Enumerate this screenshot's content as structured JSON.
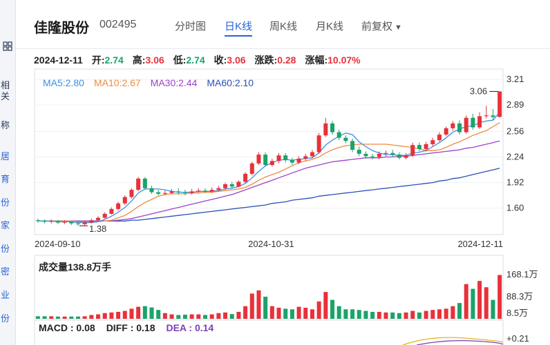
{
  "left_strip": {
    "icon": "grid-icon",
    "chars": [
      "相关",
      "称",
      "居",
      "育",
      "份",
      "家",
      "份",
      "密",
      "业",
      "份"
    ]
  },
  "header": {
    "name": "佳隆股份",
    "code": "002495",
    "tabs": [
      {
        "label": "分时图",
        "active": false
      },
      {
        "label": "日K线",
        "active": true
      },
      {
        "label": "周K线",
        "active": false
      },
      {
        "label": "月K线",
        "active": false
      },
      {
        "label": "前复权",
        "active": false
      }
    ]
  },
  "quote": {
    "date": "2024-12-11",
    "open_label": "开:",
    "open": "2.74",
    "high_label": "高:",
    "high": "3.06",
    "low_label": "低:",
    "low": "2.74",
    "close_label": "收:",
    "close": "3.06",
    "change_label": "涨跌:",
    "change": "0.28",
    "pct_label": "涨幅:",
    "pct": "10.07%"
  },
  "ma_legend": [
    {
      "label": "MA5:2.80",
      "color": "#3a8ee6"
    },
    {
      "label": "MA10:2.67",
      "color": "#f08a3c"
    },
    {
      "label": "MA30:2.44",
      "color": "#9c3fc9"
    },
    {
      "label": "MA60:2.10",
      "color": "#2a4fb5"
    }
  ],
  "volume": {
    "title": "成交量138.8万手"
  },
  "macd": {
    "macd": "MACD : 0.08",
    "diff": "DIFF : 0.18",
    "dea": "DEA : 0.14"
  },
  "chart_data": [
    {
      "type": "candlestick",
      "y_ticks": [
        "3.21",
        "2.89",
        "2.56",
        "2.24",
        "1.92",
        "1.60"
      ],
      "ylim": [
        1.27,
        3.34
      ],
      "x_tick_labels": [
        "2024-09-10",
        "2024-10-31",
        "2024-12-11"
      ],
      "annotations": {
        "max": "3.06",
        "min": "1.38"
      },
      "colors": {
        "up": "#e8313a",
        "down": "#1aa36a"
      },
      "candles": [
        [
          1.45,
          1.44,
          1.47,
          1.42
        ],
        [
          1.44,
          1.43,
          1.46,
          1.41
        ],
        [
          1.43,
          1.44,
          1.46,
          1.41
        ],
        [
          1.44,
          1.42,
          1.45,
          1.4
        ],
        [
          1.42,
          1.43,
          1.45,
          1.4
        ],
        [
          1.43,
          1.41,
          1.44,
          1.39
        ],
        [
          1.41,
          1.4,
          1.43,
          1.38
        ],
        [
          1.4,
          1.42,
          1.44,
          1.38
        ],
        [
          1.42,
          1.45,
          1.47,
          1.41
        ],
        [
          1.45,
          1.48,
          1.5,
          1.44
        ],
        [
          1.48,
          1.53,
          1.55,
          1.47
        ],
        [
          1.53,
          1.59,
          1.61,
          1.52
        ],
        [
          1.59,
          1.66,
          1.68,
          1.57
        ],
        [
          1.66,
          1.74,
          1.76,
          1.64
        ],
        [
          1.74,
          1.83,
          1.85,
          1.72
        ],
        [
          1.83,
          1.97,
          1.99,
          1.81
        ],
        [
          1.97,
          1.85,
          1.99,
          1.83
        ],
        [
          1.85,
          1.8,
          1.88,
          1.78
        ],
        [
          1.8,
          1.78,
          1.83,
          1.76
        ],
        [
          1.78,
          1.79,
          1.82,
          1.76
        ],
        [
          1.79,
          1.81,
          1.84,
          1.78
        ],
        [
          1.81,
          1.8,
          1.85,
          1.77
        ],
        [
          1.8,
          1.79,
          1.83,
          1.76
        ],
        [
          1.79,
          1.81,
          1.84,
          1.77
        ],
        [
          1.81,
          1.82,
          1.85,
          1.79
        ],
        [
          1.82,
          1.81,
          1.85,
          1.79
        ],
        [
          1.81,
          1.83,
          1.86,
          1.79
        ],
        [
          1.83,
          1.85,
          1.88,
          1.81
        ],
        [
          1.85,
          1.9,
          1.92,
          1.83
        ],
        [
          1.9,
          1.87,
          1.93,
          1.85
        ],
        [
          1.87,
          1.93,
          1.95,
          1.86
        ],
        [
          1.93,
          2.03,
          2.05,
          1.91
        ],
        [
          2.03,
          2.16,
          2.18,
          2.01
        ],
        [
          2.16,
          2.27,
          2.3,
          2.14
        ],
        [
          2.27,
          2.14,
          2.3,
          2.12
        ],
        [
          2.14,
          2.19,
          2.22,
          2.12
        ],
        [
          2.19,
          2.26,
          2.29,
          2.16
        ],
        [
          2.26,
          2.2,
          2.29,
          2.17
        ],
        [
          2.2,
          2.17,
          2.23,
          2.14
        ],
        [
          2.17,
          2.22,
          2.25,
          2.15
        ],
        [
          2.22,
          2.25,
          2.28,
          2.19
        ],
        [
          2.25,
          2.3,
          2.33,
          2.23
        ],
        [
          2.3,
          2.51,
          2.54,
          2.28
        ],
        [
          2.51,
          2.66,
          2.73,
          2.49
        ],
        [
          2.66,
          2.55,
          2.69,
          2.52
        ],
        [
          2.55,
          2.48,
          2.58,
          2.45
        ],
        [
          2.48,
          2.44,
          2.51,
          2.41
        ],
        [
          2.44,
          2.33,
          2.47,
          2.3
        ],
        [
          2.33,
          2.28,
          2.37,
          2.25
        ],
        [
          2.28,
          2.25,
          2.31,
          2.22
        ],
        [
          2.25,
          2.24,
          2.28,
          2.21
        ],
        [
          2.24,
          2.28,
          2.31,
          2.21
        ],
        [
          2.28,
          2.29,
          2.32,
          2.25
        ],
        [
          2.29,
          2.27,
          2.33,
          2.24
        ],
        [
          2.27,
          2.23,
          2.3,
          2.21
        ],
        [
          2.23,
          2.26,
          2.29,
          2.21
        ],
        [
          2.26,
          2.39,
          2.42,
          2.24
        ],
        [
          2.39,
          2.34,
          2.42,
          2.31
        ],
        [
          2.34,
          2.4,
          2.43,
          2.31
        ],
        [
          2.4,
          2.45,
          2.48,
          2.37
        ],
        [
          2.45,
          2.52,
          2.55,
          2.43
        ],
        [
          2.52,
          2.6,
          2.62,
          2.5
        ],
        [
          2.6,
          2.66,
          2.69,
          2.57
        ],
        [
          2.66,
          2.55,
          2.7,
          2.52
        ],
        [
          2.55,
          2.73,
          2.76,
          2.53
        ],
        [
          2.73,
          2.61,
          2.78,
          2.58
        ],
        [
          2.61,
          2.75,
          2.8,
          2.59
        ],
        [
          2.75,
          2.76,
          2.88,
          2.72
        ],
        [
          2.76,
          2.74,
          2.84,
          2.7
        ],
        [
          2.74,
          3.06,
          3.06,
          2.74
        ]
      ],
      "ma5": [
        1.44,
        1.44,
        1.44,
        1.43,
        1.43,
        1.43,
        1.42,
        1.42,
        1.42,
        1.43,
        1.46,
        1.5,
        1.55,
        1.61,
        1.69,
        1.79,
        1.84,
        1.84,
        1.84,
        1.83,
        1.81,
        1.8,
        1.8,
        1.8,
        1.81,
        1.81,
        1.81,
        1.82,
        1.84,
        1.85,
        1.87,
        1.91,
        1.98,
        2.06,
        2.13,
        2.17,
        2.2,
        2.21,
        2.2,
        2.21,
        2.22,
        2.23,
        2.29,
        2.39,
        2.45,
        2.5,
        2.54,
        2.52,
        2.43,
        2.37,
        2.32,
        2.29,
        2.27,
        2.27,
        2.26,
        2.26,
        2.29,
        2.3,
        2.32,
        2.37,
        2.42,
        2.48,
        2.55,
        2.59,
        2.62,
        2.63,
        2.67,
        2.69,
        2.7,
        2.8
      ],
      "ma10": [
        1.44,
        1.44,
        1.44,
        1.44,
        1.44,
        1.44,
        1.43,
        1.43,
        1.43,
        1.43,
        1.44,
        1.45,
        1.48,
        1.51,
        1.56,
        1.62,
        1.67,
        1.71,
        1.75,
        1.77,
        1.78,
        1.78,
        1.78,
        1.79,
        1.79,
        1.8,
        1.8,
        1.81,
        1.82,
        1.83,
        1.84,
        1.86,
        1.9,
        1.95,
        1.99,
        2.02,
        2.05,
        2.09,
        2.13,
        2.17,
        2.19,
        2.21,
        2.24,
        2.29,
        2.33,
        2.36,
        2.38,
        2.39,
        2.4,
        2.4,
        2.4,
        2.4,
        2.4,
        2.39,
        2.38,
        2.37,
        2.36,
        2.34,
        2.32,
        2.32,
        2.33,
        2.36,
        2.4,
        2.43,
        2.47,
        2.51,
        2.54,
        2.57,
        2.62,
        2.67
      ],
      "ma30": [
        1.44,
        1.44,
        1.44,
        1.44,
        1.44,
        1.44,
        1.44,
        1.44,
        1.44,
        1.44,
        1.44,
        1.44,
        1.45,
        1.46,
        1.47,
        1.49,
        1.51,
        1.53,
        1.55,
        1.57,
        1.59,
        1.61,
        1.63,
        1.65,
        1.67,
        1.69,
        1.71,
        1.73,
        1.75,
        1.77,
        1.8,
        1.83,
        1.86,
        1.89,
        1.92,
        1.95,
        1.98,
        2.01,
        2.04,
        2.07,
        2.1,
        2.12,
        2.14,
        2.16,
        2.18,
        2.19,
        2.2,
        2.21,
        2.22,
        2.23,
        2.23,
        2.23,
        2.24,
        2.24,
        2.25,
        2.25,
        2.26,
        2.27,
        2.28,
        2.29,
        2.3,
        2.31,
        2.32,
        2.33,
        2.35,
        2.36,
        2.38,
        2.4,
        2.42,
        2.44
      ],
      "ma60": [
        1.44,
        1.44,
        1.44,
        1.44,
        1.44,
        1.44,
        1.44,
        1.44,
        1.44,
        1.44,
        1.44,
        1.44,
        1.44,
        1.44,
        1.45,
        1.45,
        1.46,
        1.47,
        1.48,
        1.49,
        1.5,
        1.51,
        1.52,
        1.53,
        1.54,
        1.55,
        1.56,
        1.57,
        1.58,
        1.59,
        1.6,
        1.61,
        1.62,
        1.63,
        1.64,
        1.66,
        1.67,
        1.68,
        1.7,
        1.71,
        1.72,
        1.73,
        1.75,
        1.76,
        1.77,
        1.78,
        1.79,
        1.8,
        1.81,
        1.82,
        1.83,
        1.84,
        1.85,
        1.86,
        1.87,
        1.88,
        1.89,
        1.9,
        1.91,
        1.92,
        1.94,
        1.95,
        1.97,
        1.98,
        2.0,
        2.02,
        2.04,
        2.06,
        2.08,
        2.1
      ]
    },
    {
      "type": "bar",
      "title": "成交量138.8万手",
      "y_ticks": [
        "168.1万",
        "88.3万",
        "8.5万"
      ],
      "ylim": [
        0,
        175
      ],
      "values": [
        8,
        8,
        8,
        7,
        7,
        7,
        7,
        8,
        12,
        14,
        18,
        20,
        22,
        25,
        32,
        38,
        40,
        36,
        28,
        18,
        14,
        12,
        13,
        14,
        14,
        12,
        14,
        18,
        20,
        15,
        22,
        40,
        80,
        90,
        70,
        40,
        35,
        32,
        30,
        38,
        35,
        30,
        55,
        85,
        60,
        40,
        30,
        30,
        28,
        25,
        22,
        22,
        20,
        20,
        18,
        20,
        25,
        20,
        25,
        28,
        30,
        32,
        40,
        50,
        110,
        95,
        120,
        100,
        60,
        138.8
      ]
    },
    {
      "type": "line",
      "y_ticks": [
        "+0.21"
      ],
      "series": [
        {
          "name": "DIFF",
          "color": "#e7b51b"
        },
        {
          "name": "DEA",
          "color": "#7a3fb5"
        }
      ]
    }
  ]
}
